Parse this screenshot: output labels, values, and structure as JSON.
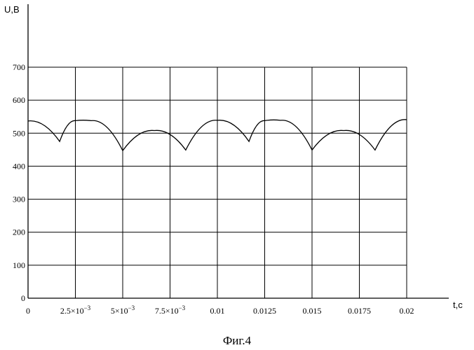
{
  "chart_data": {
    "type": "line",
    "ylabel": "U,B",
    "xlabel": "t,c",
    "caption": "Фиг.4",
    "xlim": [
      0,
      0.02
    ],
    "ylim": [
      0,
      700
    ],
    "grid": true,
    "x_ticks": [
      {
        "value": 0,
        "base": "0",
        "exp": ""
      },
      {
        "value": 0.0025,
        "base": "2.5×10",
        "exp": "−3"
      },
      {
        "value": 0.005,
        "base": "5×10",
        "exp": "−3"
      },
      {
        "value": 0.0075,
        "base": "7.5×10",
        "exp": "−3"
      },
      {
        "value": 0.01,
        "base": "0.01",
        "exp": ""
      },
      {
        "value": 0.0125,
        "base": "0.0125",
        "exp": ""
      },
      {
        "value": 0.015,
        "base": "0.015",
        "exp": ""
      },
      {
        "value": 0.0175,
        "base": "0.0175",
        "exp": ""
      },
      {
        "value": 0.02,
        "base": "0.02",
        "exp": ""
      }
    ],
    "y_ticks": [
      0,
      100,
      200,
      300,
      400,
      500,
      600,
      700
    ],
    "series": [
      {
        "color": "#000000",
        "points": [
          {
            "x": 0.0,
            "y": 537
          },
          {
            "x": 0.00167,
            "y": 475
          },
          {
            "x": 0.0025,
            "y": 538
          },
          {
            "x": 0.00333,
            "y": 538
          },
          {
            "x": 0.005,
            "y": 447
          },
          {
            "x": 0.00667,
            "y": 508
          },
          {
            "x": 0.00833,
            "y": 449
          },
          {
            "x": 0.01,
            "y": 539
          },
          {
            "x": 0.01167,
            "y": 475
          },
          {
            "x": 0.0125,
            "y": 538
          },
          {
            "x": 0.01333,
            "y": 539
          },
          {
            "x": 0.015,
            "y": 449
          },
          {
            "x": 0.01667,
            "y": 508
          },
          {
            "x": 0.01833,
            "y": 449
          },
          {
            "x": 0.02,
            "y": 541
          }
        ]
      }
    ]
  }
}
